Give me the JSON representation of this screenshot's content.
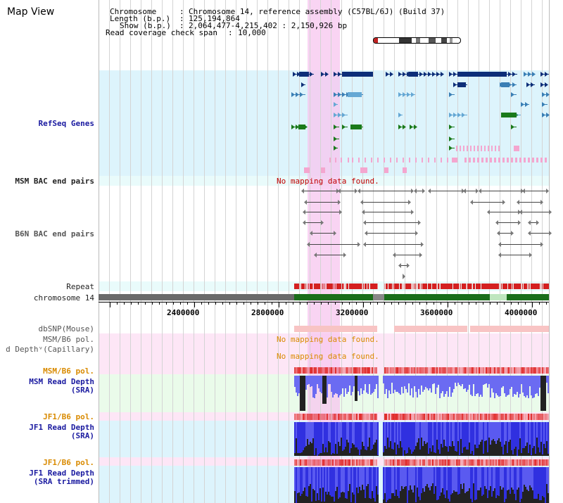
{
  "title": "Map View",
  "info": {
    "chromosome_key": "Chromosome",
    "chromosome_val": "Chromosome 14, reference assembly (C57BL/6J) (Build 37)",
    "length_key": "Length (b.p.)",
    "length_val": "125,194,864",
    "show_key": "Show (b.p.)",
    "show_val": "2,064,477-4,215,402 : 2,150,926 bp",
    "span_key": "Read coverage check span",
    "span_val": "10,000"
  },
  "tracks": {
    "refseq": "RefSeq Genes",
    "msm_bac": "MSM BAC end pairs",
    "b6n_bac": "B6N BAC end pairs",
    "repeat": "Repeat",
    "chromosome": "chromosome 14",
    "dbsnp": "dbSNP(Mouse)",
    "msm_pol_1": "MSM/B6 pol.",
    "read_depth_cap": "d Depthᵛ(Capillary)",
    "msm_pol_2": "MSM/B6 pol.",
    "msm_depth_1": "MSM Read Depth",
    "msm_depth_2": "(SRA)",
    "jf1_pol_1": "JF1/B6 pol.",
    "jf1_depth_1": "JF1 Read Depth",
    "jf1_depth_2": "(SRA)",
    "jf1_pol_2": "JF1/B6 pol.",
    "jf1t_depth_1": "JF1 Read Depth",
    "jf1t_depth_2": "(SRA trimmed)"
  },
  "messages": {
    "msm_bac_nodata": "No mapping data found.",
    "pol_nodata": "No mapping data found.",
    "capillary_nodata": "No mapping data found."
  },
  "axis": {
    "ticks": [
      "2400000",
      "2800000",
      "3200000",
      "3600000",
      "4000000"
    ]
  },
  "colors": {
    "track_bg": "#ddf4fc",
    "highlight": "#f7c6ef",
    "gene_dark": "#0d2e78",
    "gene_mid": "#3a7fb5",
    "gene_light": "#65a8d4",
    "gene_green": "#1a7a1a",
    "gene_pink": "#f4a6cf",
    "repeat": "#d42020",
    "chrom_gray": "#6a6a6a",
    "chrom_green": "#1a6e1a",
    "depth_blue": "#3030e0",
    "depth_black": "#222222",
    "pol_red": "#e04040"
  }
}
